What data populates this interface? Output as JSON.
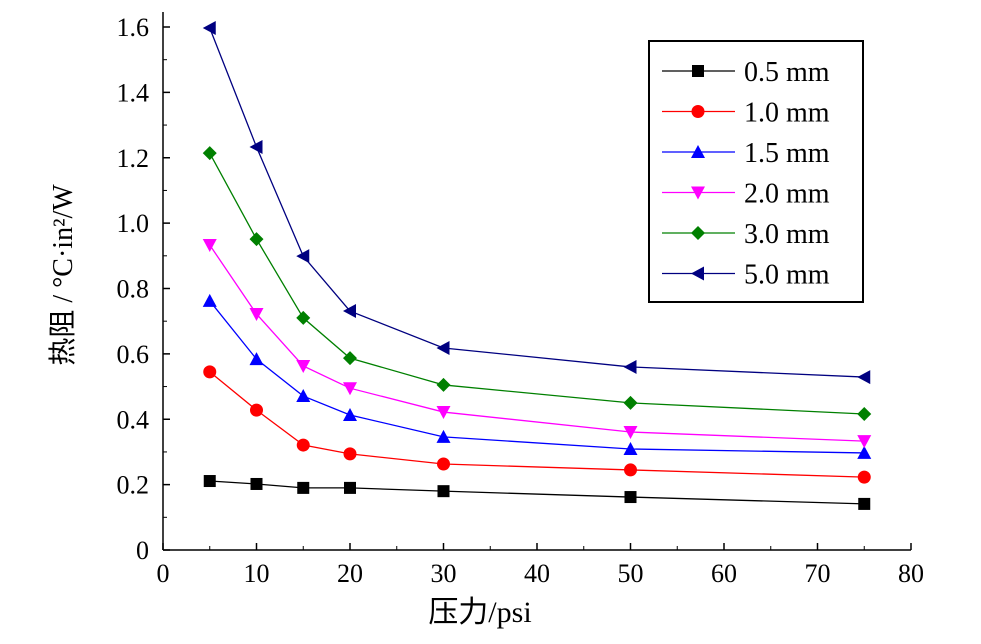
{
  "chart_data": {
    "type": "line",
    "title": "",
    "xlabel": "压力/psi",
    "ylabel": "热阻 / °C·in²/W",
    "xlim": [
      0,
      80
    ],
    "ylim": [
      0,
      1.6
    ],
    "xticks": [
      "0",
      "10",
      "20",
      "30",
      "40",
      "50",
      "60",
      "70",
      "80"
    ],
    "yticks": [
      "0",
      "0.2",
      "0.4",
      "0.6",
      "0.8",
      "1.0",
      "1.2",
      "1.4",
      "1.6"
    ],
    "grid": false,
    "legend_position": "top-right",
    "x": [
      5,
      10,
      15,
      20,
      30,
      50,
      75
    ],
    "series": [
      {
        "name": "0.5 mm",
        "color": "#000000",
        "marker": "square",
        "values": [
          0.211,
          0.202,
          0.19,
          0.19,
          0.18,
          0.162,
          0.141
        ]
      },
      {
        "name": "1.0 mm",
        "color": "#ff0000",
        "marker": "circle",
        "values": [
          0.545,
          0.428,
          0.321,
          0.294,
          0.263,
          0.245,
          0.223
        ]
      },
      {
        "name": "1.5 mm",
        "color": "#0000ff",
        "marker": "triangle-up",
        "values": [
          0.762,
          0.584,
          0.471,
          0.413,
          0.346,
          0.309,
          0.297
        ]
      },
      {
        "name": "2.0 mm",
        "color": "#ff00ff",
        "marker": "triangle-down",
        "values": [
          0.933,
          0.722,
          0.563,
          0.495,
          0.422,
          0.361,
          0.333
        ]
      },
      {
        "name": "3.0 mm",
        "color": "#008000",
        "marker": "diamond",
        "values": [
          1.214,
          0.951,
          0.71,
          0.587,
          0.505,
          0.45,
          0.416
        ]
      },
      {
        "name": "5.0 mm",
        "color": "#000080",
        "marker": "triangle-left",
        "values": [
          1.597,
          1.233,
          0.899,
          0.731,
          0.618,
          0.56,
          0.529
        ]
      }
    ]
  }
}
